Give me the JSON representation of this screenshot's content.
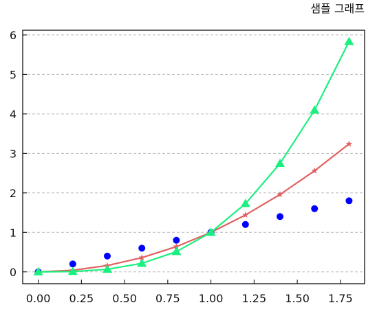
{
  "chart_data": {
    "type": "line",
    "title": "샘플 그래프",
    "xlabel": "",
    "ylabel": "",
    "xlim": [
      -0.09,
      1.89
    ],
    "ylim": [
      -0.3,
      6.12
    ],
    "x_ticks": [
      "0.00",
      "0.25",
      "0.50",
      "0.75",
      "1.00",
      "1.25",
      "1.50",
      "1.75"
    ],
    "y_ticks": [
      "0",
      "1",
      "2",
      "3",
      "4",
      "5",
      "6"
    ],
    "grid": {
      "y": true,
      "x": false,
      "style": "dashed"
    },
    "x": [
      0.0,
      0.2,
      0.4,
      0.6,
      0.8,
      1.0,
      1.2,
      1.4,
      1.6,
      1.8
    ],
    "series": [
      {
        "style": "scatter",
        "marker": "circle",
        "color": "#0000ff",
        "values": [
          0.0,
          0.2,
          0.4,
          0.6,
          0.8,
          1.0,
          1.2,
          1.4,
          1.6,
          1.8
        ]
      },
      {
        "style": "line",
        "marker": "star",
        "color": "#e06060",
        "values": [
          0.0,
          0.04,
          0.16,
          0.36,
          0.64,
          1.0,
          1.44,
          1.96,
          2.56,
          3.24
        ]
      },
      {
        "style": "line",
        "marker": "triangle",
        "color": "#19f07f",
        "values": [
          0.0,
          0.008,
          0.064,
          0.216,
          0.512,
          1.0,
          1.728,
          2.744,
          4.096,
          5.832
        ]
      }
    ]
  }
}
